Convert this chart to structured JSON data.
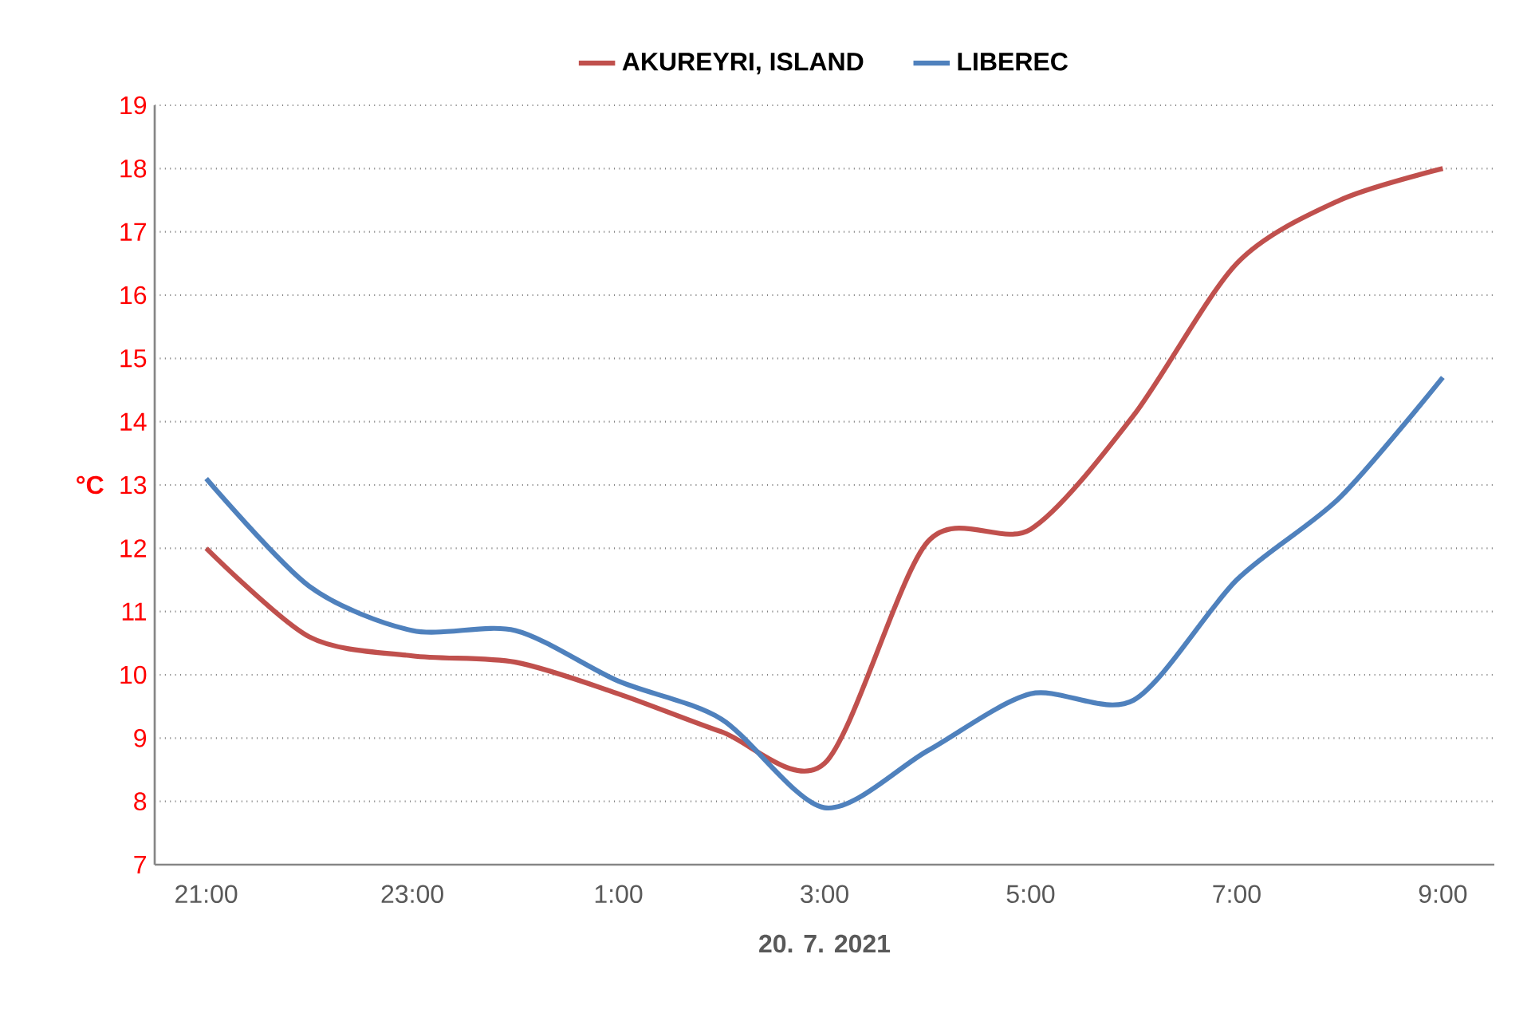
{
  "chart_data": {
    "type": "line",
    "xlabel": "20. 7. 2021",
    "ylabel": "°C",
    "x": [
      "2021-07-20T21:00",
      "2021-07-20T22:00",
      "2021-07-20T23:00",
      "2021-07-21T00:00",
      "2021-07-21T01:00",
      "2021-07-21T02:00",
      "2021-07-21T03:00",
      "2021-07-21T04:00",
      "2021-07-21T05:00",
      "2021-07-21T06:00",
      "2021-07-21T07:00",
      "2021-07-21T08:00",
      "2021-07-21T09:00"
    ],
    "series": [
      {
        "name": "AKUREYRI, ISLAND",
        "color": "#c0504d",
        "values": [
          12.0,
          10.6,
          10.3,
          10.2,
          9.7,
          9.1,
          8.6,
          12.1,
          12.3,
          14.1,
          16.5,
          17.5,
          18.0
        ]
      },
      {
        "name": "LIBEREC",
        "color": "#4f81bd",
        "values": [
          13.1,
          11.4,
          10.7,
          10.7,
          9.9,
          9.3,
          7.9,
          8.8,
          9.7,
          9.6,
          11.5,
          12.8,
          14.7
        ]
      }
    ],
    "xlim": [
      "2021-07-20T20:30",
      "2021-07-21T09:30"
    ],
    "ylim": [
      7,
      19
    ],
    "xticks": [
      {
        "value": "2021-07-20T21:00",
        "label": "21:00"
      },
      {
        "value": "2021-07-20T23:00",
        "label": "23:00"
      },
      {
        "value": "2021-07-21T01:00",
        "label": "1:00"
      },
      {
        "value": "2021-07-21T03:00",
        "label": "3:00"
      },
      {
        "value": "2021-07-21T05:00",
        "label": "5:00"
      },
      {
        "value": "2021-07-21T07:00",
        "label": "7:00"
      },
      {
        "value": "2021-07-21T09:00",
        "label": "9:00"
      }
    ],
    "yticks": [
      7,
      8,
      9,
      10,
      11,
      12,
      13,
      14,
      15,
      16,
      17,
      18,
      19
    ],
    "grid": "y",
    "legend": "top",
    "marker": "none",
    "line_style": "solid"
  }
}
